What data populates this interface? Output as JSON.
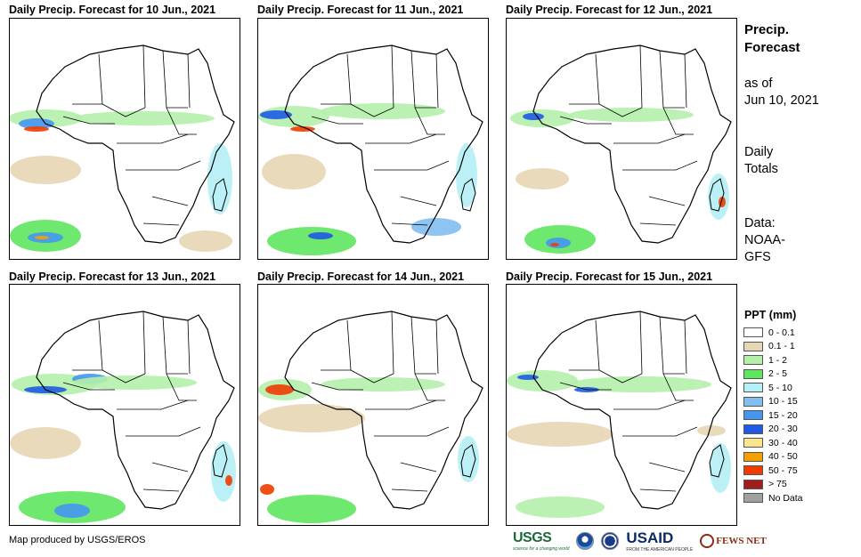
{
  "panels": [
    {
      "title": "Daily Precip. Forecast for 10 Jun., 2021"
    },
    {
      "title": "Daily Precip. Forecast for 11 Jun., 2021"
    },
    {
      "title": "Daily Precip. Forecast for 12 Jun., 2021"
    },
    {
      "title": "Daily Precip. Forecast for 13 Jun., 2021"
    },
    {
      "title": "Daily Precip. Forecast for 14 Jun., 2021"
    },
    {
      "title": "Daily Precip. Forecast for 15 Jun., 2021"
    }
  ],
  "sidebar": {
    "title_line1": "Precip.",
    "title_line2": "Forecast",
    "asof_line1": "as of",
    "asof_line2": "Jun 10, 2021",
    "totals_line1": "Daily",
    "totals_line2": "Totals",
    "data_line1": "Data:",
    "data_line2": "NOAA-",
    "data_line3": "GFS"
  },
  "legend": {
    "title": "PPT (mm)",
    "items": [
      {
        "label": "0 - 0.1",
        "color": "#ffffff"
      },
      {
        "label": "0.1 - 1",
        "color": "#e6d6b4"
      },
      {
        "label": "1 - 2",
        "color": "#b4f0aa"
      },
      {
        "label": "2 - 5",
        "color": "#5ee65e"
      },
      {
        "label": "5 - 10",
        "color": "#b4f0f5"
      },
      {
        "label": "10 - 15",
        "color": "#82bef0"
      },
      {
        "label": "15 - 20",
        "color": "#4696f0"
      },
      {
        "label": "20 - 30",
        "color": "#1e5ae6"
      },
      {
        "label": "30 - 40",
        "color": "#fae68c"
      },
      {
        "label": "40 - 50",
        "color": "#f5a000"
      },
      {
        "label": "50 - 75",
        "color": "#f03c00"
      },
      {
        "label": "> 75",
        "color": "#a01e1e"
      },
      {
        "label": "No Data",
        "color": "#a0a0a0"
      }
    ]
  },
  "credit": "Map produced by USGS/EROS",
  "logos": {
    "usgs": "USGS",
    "usgs_tagline": "science for a changing world",
    "usaid": "USAID",
    "usaid_tagline": "FROM THE AMERICAN PEOPLE",
    "fews": "FEWS NET"
  }
}
